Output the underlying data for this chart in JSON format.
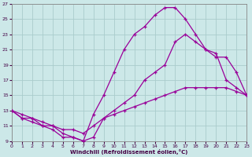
{
  "xlabel": "Windchill (Refroidissement éolien,°C)",
  "bg_color": "#cce8e8",
  "grid_color": "#aacccc",
  "line_color": "#990099",
  "xlim": [
    0,
    23
  ],
  "ylim": [
    9,
    27
  ],
  "xticks": [
    0,
    1,
    2,
    3,
    4,
    5,
    6,
    7,
    8,
    9,
    10,
    11,
    12,
    13,
    14,
    15,
    16,
    17,
    18,
    19,
    20,
    21,
    22,
    23
  ],
  "yticks": [
    9,
    11,
    13,
    15,
    17,
    19,
    21,
    23,
    25,
    27
  ],
  "line1_x": [
    0,
    1,
    2,
    3,
    4,
    5,
    6,
    7,
    8,
    9,
    10,
    11,
    12,
    13,
    14,
    15,
    16,
    17,
    18,
    19,
    20,
    21,
    22,
    23
  ],
  "line1_y": [
    13,
    12,
    12,
    11,
    11,
    10,
    9.5,
    9,
    12.5,
    15,
    18,
    21,
    23,
    24,
    25.5,
    26.5,
    26.5,
    25,
    23,
    21,
    20.5,
    17,
    16,
    15
  ],
  "line2_x": [
    0,
    1,
    2,
    3,
    4,
    5,
    6,
    7,
    8,
    9,
    10,
    11,
    12,
    13,
    14,
    15,
    16,
    17,
    18,
    19,
    20,
    21,
    22,
    23
  ],
  "line2_y": [
    13,
    12,
    11.5,
    11,
    10.5,
    9.5,
    9.5,
    9,
    9.5,
    12,
    13,
    14,
    15,
    17,
    18,
    19,
    22,
    23,
    22,
    21,
    20,
    20,
    18,
    15
  ],
  "line3_x": [
    0,
    1,
    2,
    3,
    4,
    5,
    6,
    7,
    8,
    9,
    10,
    11,
    12,
    13,
    14,
    15,
    16,
    17,
    18,
    19,
    20,
    21,
    22,
    23
  ],
  "line3_y": [
    13,
    12.5,
    12,
    11.5,
    11,
    10.5,
    10.5,
    10,
    11,
    12,
    12.5,
    13,
    13.5,
    14,
    14.5,
    15,
    15.5,
    16,
    16,
    16,
    16,
    16,
    15.5,
    15
  ]
}
